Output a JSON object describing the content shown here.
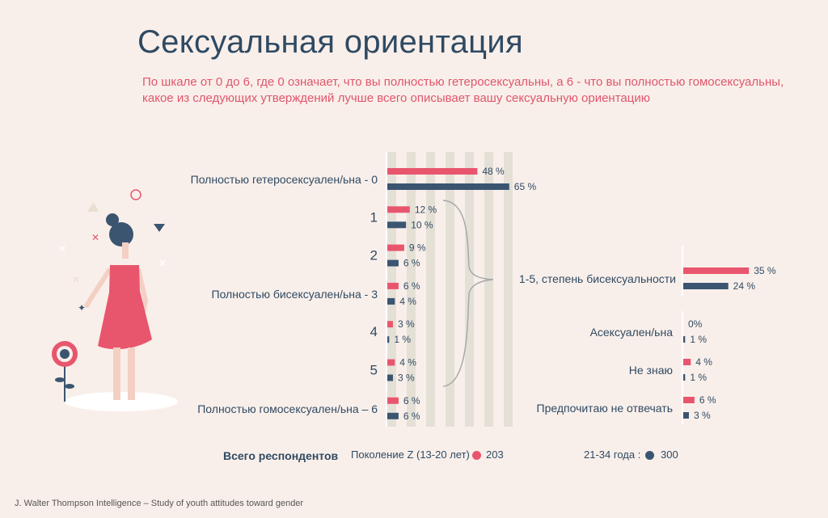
{
  "title": "Сексуальная ориентация",
  "question": "По шкале от 0 до 6, где 0 означает, что вы полностью гетеросексуальны, а 6 - что вы полностью гомосексуальны, какое из следующих утверждений лучше всего описывает вашу сексуальную ориентацию",
  "footer": "J. Walter Thompson Intelligence – Study of youth attitudes toward gender",
  "legend": {
    "title": "Всего респондентов",
    "genz_label": "Поколение Z  (13-20 лет)",
    "genz_value": "203",
    "millennials_label": "21-34 года :",
    "millennials_value": "300"
  },
  "colors": {
    "genz": "#e8566d",
    "millennials": "#3b5570",
    "stripe": "#e4e0d6",
    "text": "#2f4a63"
  },
  "chart_data": [
    {
      "type": "bar",
      "orientation": "horizontal",
      "categories": [
        "Полностью гетеросексуален/ьна  - 0",
        "1",
        "2",
        "Полностью бисексуален/ьна  - 3",
        "4",
        "5",
        "Полностью гомосексуален/ьна  – 6"
      ],
      "series": [
        {
          "name": "Поколение Z  (13-20 лет)",
          "values": [
            48,
            12,
            9,
            6,
            3,
            4,
            6
          ],
          "labels": [
            "48 %",
            "12 %",
            "9 %",
            "6 %",
            "3 %",
            "4 %",
            "6 %"
          ]
        },
        {
          "name": "21-34 года",
          "values": [
            65,
            10,
            6,
            4,
            1,
            3,
            6
          ],
          "labels": [
            "65 %",
            "10 %",
            "6 %",
            "4 %",
            "1 %",
            "3 %",
            "6 %"
          ]
        }
      ]
    },
    {
      "type": "bar",
      "orientation": "horizontal",
      "categories": [
        "1-5, степень бисексуальности"
      ],
      "series": [
        {
          "name": "Поколение Z  (13-20 лет)",
          "values": [
            35
          ],
          "labels": [
            "35 %"
          ]
        },
        {
          "name": "21-34 года",
          "values": [
            24
          ],
          "labels": [
            "24 %"
          ]
        }
      ]
    },
    {
      "type": "bar",
      "orientation": "horizontal",
      "categories": [
        "Асексуален/ьна",
        "Не знаю",
        "Предпочитаю не отвечать"
      ],
      "series": [
        {
          "name": "Поколение Z  (13-20 лет)",
          "values": [
            0,
            4,
            6
          ],
          "labels": [
            "0%",
            "4 %",
            "6 %"
          ]
        },
        {
          "name": "21-34 года",
          "values": [
            1,
            1,
            3
          ],
          "labels": [
            "1 %",
            "1 %",
            "3 %"
          ]
        }
      ]
    }
  ]
}
